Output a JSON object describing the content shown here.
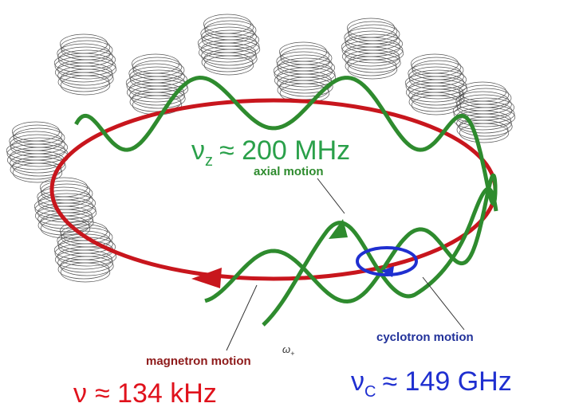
{
  "axial": {
    "symbol": "ν",
    "subscript": "z",
    "value": "≈ 200 MHz",
    "label": "axial motion"
  },
  "cyclotron": {
    "symbol": "ν",
    "subscript": "C",
    "value": "≈ 149 GHz",
    "label": "cyclotron motion"
  },
  "magnetron": {
    "symbol": "ν",
    "value": "≈ 134 kHz",
    "label": "magnetron motion",
    "annotation": {
      "symbol": "ω",
      "subscript": "+"
    }
  }
}
